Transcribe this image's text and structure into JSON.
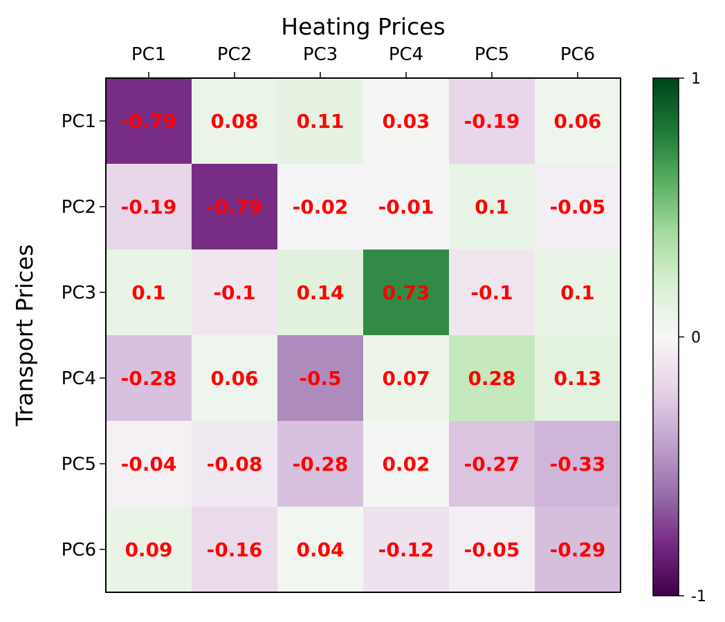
{
  "chart_data": {
    "type": "heatmap",
    "title": "Heating Prices",
    "xlabel": "Heating Prices",
    "ylabel": "Transport Prices",
    "x_categories": [
      "PC1",
      "PC2",
      "PC3",
      "PC4",
      "PC5",
      "PC6"
    ],
    "y_categories": [
      "PC1",
      "PC2",
      "PC3",
      "PC4",
      "PC5",
      "PC6"
    ],
    "x_axis_position": "top",
    "values": [
      [
        -0.79,
        0.08,
        0.11,
        0.03,
        -0.19,
        0.06
      ],
      [
        -0.19,
        -0.79,
        -0.02,
        -0.01,
        0.1,
        -0.05
      ],
      [
        0.1,
        -0.1,
        0.14,
        0.73,
        -0.1,
        0.1
      ],
      [
        -0.28,
        0.06,
        -0.5,
        0.07,
        0.28,
        0.13
      ],
      [
        -0.04,
        -0.08,
        -0.28,
        0.02,
        -0.27,
        -0.33
      ],
      [
        0.09,
        -0.16,
        0.04,
        -0.12,
        -0.05,
        -0.29
      ]
    ],
    "vmin": -1,
    "vmax": 1,
    "colormap": "PRGn",
    "colorbar": {
      "ticks": [
        1,
        0,
        -1
      ],
      "tick_labels": [
        "1",
        "0",
        "-1"
      ]
    },
    "annotation_color": "#ff0000",
    "grid": false
  }
}
